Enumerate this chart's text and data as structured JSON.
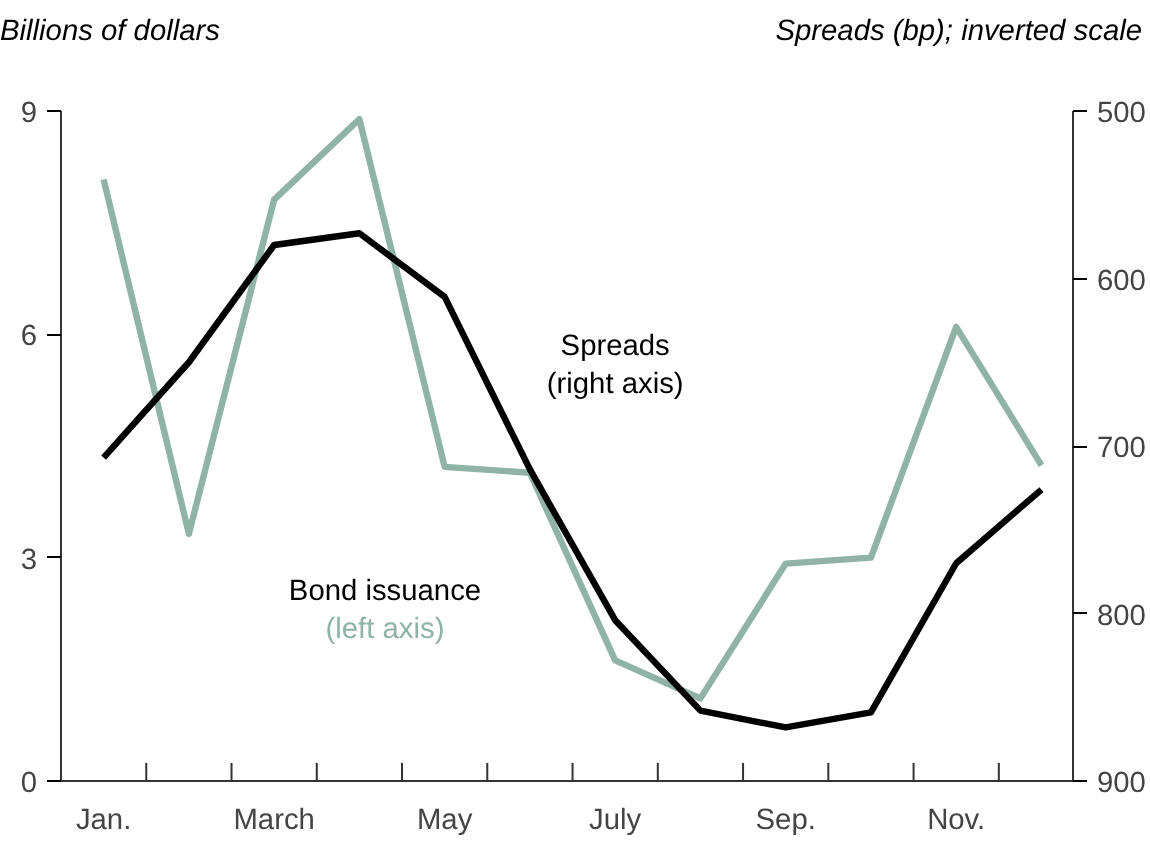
{
  "chart_data": {
    "type": "line",
    "ylabel": "Billions of dollars",
    "y2label": "Spreads (bp); inverted scale",
    "categories": [
      "Jan.",
      null,
      "March",
      null,
      "May",
      null,
      "July",
      null,
      "Sep.",
      null,
      "Nov.",
      null
    ],
    "series": [
      {
        "name": "Bond issuance (left axis)",
        "color": "#8fb3a5",
        "values": [
          8.08,
          3.32,
          7.81,
          8.89,
          4.22,
          4.14,
          1.62,
          1.11,
          2.92,
          3.0,
          6.1,
          4.24
        ]
      },
      {
        "name": "Spreads (right axis)",
        "color": "#000000",
        "axis": "y2",
        "values": [
          707,
          650,
          580,
          573,
          611,
          714,
          804,
          858,
          868,
          859,
          770,
          726
        ]
      }
    ],
    "ylim": [
      0,
      9
    ],
    "yticks": [
      0,
      3,
      6,
      9
    ],
    "y2lim": [
      900,
      500
    ],
    "y2ticks": [
      500,
      600,
      700,
      800,
      900
    ],
    "grid": false,
    "line_style": "solid",
    "marker": "none"
  }
}
